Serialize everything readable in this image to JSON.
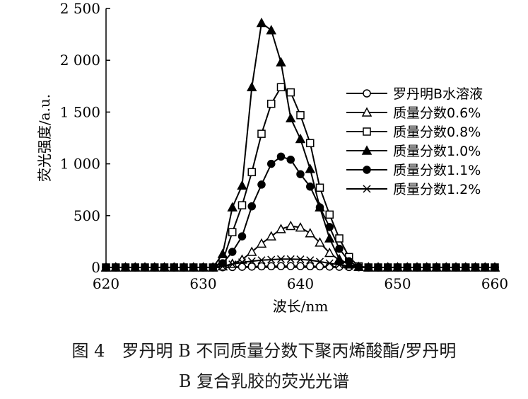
{
  "chart_data": {
    "type": "line",
    "xlabel": "波长/nm",
    "ylabel": "荧光强度/a.u.",
    "xlim": [
      620,
      660
    ],
    "ylim": [
      0,
      2500
    ],
    "x_ticks": [
      "620",
      "630",
      "640",
      "650",
      "660"
    ],
    "y_ticks": [
      "0",
      "500",
      "1 000",
      "1 500",
      "2 000",
      "2 500"
    ],
    "legend_position": "right",
    "x": [
      620,
      621,
      622,
      623,
      624,
      625,
      626,
      627,
      628,
      629,
      630,
      631,
      632,
      633,
      634,
      635,
      636,
      637,
      638,
      639,
      640,
      641,
      642,
      643,
      644,
      645,
      646,
      647,
      648,
      649,
      650,
      651,
      652,
      653,
      654,
      655,
      656,
      657,
      658,
      659,
      660
    ],
    "series": [
      {
        "name": "罗丹明B水溶液",
        "marker": "circle-open",
        "values": [
          0,
          0,
          0,
          0,
          0,
          0,
          0,
          0,
          0,
          0,
          0,
          0,
          2,
          4,
          6,
          8,
          10,
          11,
          12,
          12,
          12,
          11,
          10,
          8,
          6,
          4,
          2,
          0,
          0,
          0,
          0,
          0,
          0,
          0,
          0,
          0,
          0,
          0,
          0,
          0,
          0
        ]
      },
      {
        "name": "质量分数0.6%",
        "marker": "triangle-open",
        "values": [
          0,
          0,
          0,
          0,
          0,
          0,
          0,
          0,
          0,
          0,
          0,
          0,
          10,
          35,
          75,
          150,
          230,
          300,
          370,
          400,
          385,
          330,
          240,
          140,
          70,
          30,
          5,
          0,
          0,
          0,
          0,
          0,
          0,
          0,
          0,
          0,
          0,
          0,
          0,
          0,
          0
        ]
      },
      {
        "name": "质量分数0.8%",
        "marker": "square-open",
        "values": [
          0,
          0,
          0,
          0,
          0,
          0,
          0,
          0,
          0,
          0,
          0,
          0,
          60,
          340,
          600,
          920,
          1290,
          1580,
          1740,
          1690,
          1470,
          1200,
          770,
          510,
          280,
          100,
          10,
          0,
          0,
          0,
          0,
          0,
          0,
          0,
          0,
          0,
          0,
          0,
          0,
          0,
          0
        ]
      },
      {
        "name": "质量分数1.0%",
        "marker": "triangle-filled",
        "values": [
          0,
          0,
          0,
          0,
          0,
          0,
          0,
          0,
          0,
          0,
          0,
          0,
          130,
          580,
          790,
          1740,
          2360,
          2290,
          1980,
          1440,
          1240,
          950,
          580,
          280,
          80,
          30,
          5,
          0,
          0,
          0,
          0,
          0,
          0,
          0,
          0,
          0,
          0,
          0,
          0,
          0,
          0
        ]
      },
      {
        "name": "质量分数1.1%",
        "marker": "circle-filled",
        "values": [
          0,
          0,
          0,
          0,
          0,
          0,
          0,
          0,
          0,
          0,
          0,
          0,
          40,
          150,
          300,
          590,
          800,
          1000,
          1070,
          1040,
          900,
          780,
          580,
          390,
          180,
          60,
          5,
          0,
          0,
          0,
          0,
          0,
          0,
          0,
          0,
          0,
          0,
          0,
          0,
          0,
          0
        ]
      },
      {
        "name": "质量分数1.2%",
        "marker": "x",
        "values": [
          0,
          0,
          0,
          0,
          0,
          0,
          0,
          0,
          0,
          0,
          0,
          0,
          10,
          30,
          50,
          60,
          70,
          75,
          80,
          80,
          78,
          70,
          55,
          40,
          25,
          12,
          3,
          0,
          0,
          0,
          0,
          0,
          0,
          0,
          0,
          0,
          0,
          0,
          0,
          0,
          0
        ]
      }
    ]
  },
  "caption": {
    "line1": "图 4　罗丹明 B 不同质量分数下聚丙烯酸酯/罗丹明",
    "line2": "B 复合乳胶的荧光光谱"
  }
}
